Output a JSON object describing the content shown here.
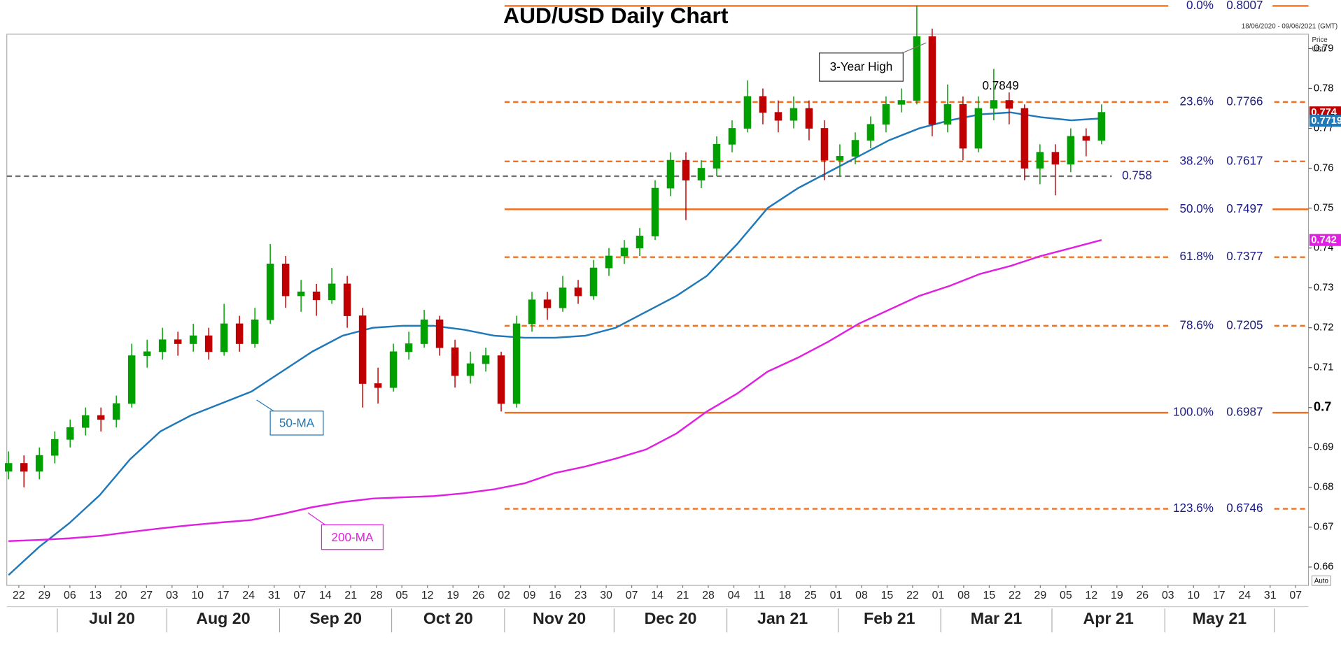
{
  "chart_data": {
    "type": "candlestick",
    "title": "AUD/USD Daily Chart",
    "date_range": "18/06/2020 - 09/06/2021 (GMT)",
    "y_label_lines": [
      "Price",
      "USD"
    ],
    "scale_mode": "Auto",
    "ylim": [
      0.6554,
      0.7936
    ],
    "yticks": [
      0.66,
      0.67,
      0.68,
      0.69,
      0.7,
      0.71,
      0.72,
      0.73,
      0.74,
      0.75,
      0.76,
      0.77,
      0.78,
      0.79
    ],
    "bold_ytick": 0.7,
    "grid": false,
    "week_labels": [
      "22",
      "29",
      "06",
      "13",
      "20",
      "27",
      "03",
      "10",
      "17",
      "24",
      "31",
      "07",
      "14",
      "21",
      "28",
      "05",
      "12",
      "19",
      "26",
      "02",
      "09",
      "16",
      "23",
      "30",
      "07",
      "14",
      "21",
      "28",
      "04",
      "11",
      "18",
      "25",
      "01",
      "08",
      "15",
      "22",
      "01",
      "08",
      "15",
      "22",
      "29",
      "05",
      "12",
      "19",
      "26",
      "03",
      "10",
      "17",
      "24",
      "31",
      "07"
    ],
    "month_labels": [
      "Jul 20",
      "Aug 20",
      "Sep 20",
      "Oct 20",
      "Nov 20",
      "Dec 20",
      "Jan 21",
      "Feb 21",
      "Mar 21",
      "Apr 21",
      "May 21"
    ],
    "up_color": "#00a000",
    "down_color": "#c00000",
    "ohlc": [
      [
        0.684,
        0.689,
        0.682,
        0.686
      ],
      [
        0.686,
        0.688,
        0.68,
        0.684
      ],
      [
        0.684,
        0.69,
        0.682,
        0.688
      ],
      [
        0.688,
        0.694,
        0.686,
        0.692
      ],
      [
        0.692,
        0.697,
        0.69,
        0.695
      ],
      [
        0.695,
        0.7,
        0.693,
        0.698
      ],
      [
        0.698,
        0.7,
        0.694,
        0.697
      ],
      [
        0.697,
        0.703,
        0.695,
        0.701
      ],
      [
        0.701,
        0.716,
        0.7,
        0.713
      ],
      [
        0.713,
        0.717,
        0.71,
        0.714
      ],
      [
        0.714,
        0.72,
        0.712,
        0.717
      ],
      [
        0.717,
        0.719,
        0.713,
        0.716
      ],
      [
        0.716,
        0.721,
        0.714,
        0.718
      ],
      [
        0.718,
        0.72,
        0.712,
        0.714
      ],
      [
        0.714,
        0.726,
        0.713,
        0.721
      ],
      [
        0.721,
        0.723,
        0.714,
        0.716
      ],
      [
        0.716,
        0.725,
        0.715,
        0.722
      ],
      [
        0.722,
        0.741,
        0.721,
        0.736
      ],
      [
        0.736,
        0.738,
        0.725,
        0.728
      ],
      [
        0.728,
        0.732,
        0.724,
        0.729
      ],
      [
        0.729,
        0.731,
        0.723,
        0.727
      ],
      [
        0.727,
        0.735,
        0.726,
        0.731
      ],
      [
        0.731,
        0.733,
        0.72,
        0.723
      ],
      [
        0.723,
        0.725,
        0.7,
        0.706
      ],
      [
        0.706,
        0.71,
        0.701,
        0.705
      ],
      [
        0.705,
        0.716,
        0.704,
        0.714
      ],
      [
        0.714,
        0.719,
        0.712,
        0.716
      ],
      [
        0.716,
        0.7245,
        0.715,
        0.722
      ],
      [
        0.722,
        0.723,
        0.713,
        0.715
      ],
      [
        0.715,
        0.717,
        0.705,
        0.708
      ],
      [
        0.708,
        0.714,
        0.706,
        0.711
      ],
      [
        0.711,
        0.715,
        0.709,
        0.713
      ],
      [
        0.713,
        0.714,
        0.699,
        0.701
      ],
      [
        0.701,
        0.723,
        0.7,
        0.721
      ],
      [
        0.721,
        0.729,
        0.719,
        0.727
      ],
      [
        0.727,
        0.729,
        0.722,
        0.725
      ],
      [
        0.725,
        0.733,
        0.724,
        0.73
      ],
      [
        0.73,
        0.732,
        0.726,
        0.728
      ],
      [
        0.728,
        0.737,
        0.727,
        0.735
      ],
      [
        0.735,
        0.74,
        0.733,
        0.738
      ],
      [
        0.738,
        0.742,
        0.736,
        0.74
      ],
      [
        0.74,
        0.745,
        0.738,
        0.743
      ],
      [
        0.743,
        0.757,
        0.742,
        0.755
      ],
      [
        0.755,
        0.764,
        0.753,
        0.762
      ],
      [
        0.762,
        0.764,
        0.747,
        0.757
      ],
      [
        0.757,
        0.762,
        0.755,
        0.76
      ],
      [
        0.76,
        0.768,
        0.758,
        0.766
      ],
      [
        0.766,
        0.772,
        0.764,
        0.77
      ],
      [
        0.77,
        0.782,
        0.769,
        0.778
      ],
      [
        0.778,
        0.78,
        0.771,
        0.774
      ],
      [
        0.774,
        0.777,
        0.769,
        0.772
      ],
      [
        0.772,
        0.778,
        0.77,
        0.775
      ],
      [
        0.775,
        0.777,
        0.767,
        0.77
      ],
      [
        0.77,
        0.772,
        0.757,
        0.762
      ],
      [
        0.762,
        0.766,
        0.758,
        0.763
      ],
      [
        0.763,
        0.769,
        0.761,
        0.767
      ],
      [
        0.767,
        0.773,
        0.765,
        0.771
      ],
      [
        0.771,
        0.778,
        0.769,
        0.776
      ],
      [
        0.776,
        0.78,
        0.774,
        0.777
      ],
      [
        0.777,
        0.8007,
        0.776,
        0.793
      ],
      [
        0.793,
        0.795,
        0.768,
        0.771
      ],
      [
        0.771,
        0.781,
        0.769,
        0.776
      ],
      [
        0.776,
        0.778,
        0.762,
        0.765
      ],
      [
        0.765,
        0.778,
        0.764,
        0.775
      ],
      [
        0.775,
        0.7849,
        0.772,
        0.777
      ],
      [
        0.777,
        0.779,
        0.771,
        0.775
      ],
      [
        0.775,
        0.776,
        0.757,
        0.76
      ],
      [
        0.76,
        0.766,
        0.756,
        0.764
      ],
      [
        0.764,
        0.766,
        0.7532,
        0.761
      ],
      [
        0.761,
        0.77,
        0.759,
        0.768
      ],
      [
        0.768,
        0.77,
        0.763,
        0.767
      ],
      [
        0.767,
        0.776,
        0.766,
        0.774
      ]
    ],
    "series": [
      {
        "name": "50-MA",
        "color": "#1f78b8",
        "values": [
          0.658,
          0.665,
          0.671,
          0.678,
          0.687,
          0.694,
          0.698,
          0.701,
          0.704,
          0.709,
          0.714,
          0.718,
          0.72,
          0.7205,
          0.7205,
          0.7195,
          0.718,
          0.7175,
          0.7175,
          0.718,
          0.72,
          0.724,
          0.728,
          0.733,
          0.741,
          0.75,
          0.755,
          0.759,
          0.763,
          0.767,
          0.77,
          0.772,
          0.7735,
          0.774,
          0.7728,
          0.772,
          0.7725
        ]
      },
      {
        "name": "200-MA",
        "color": "#e020e0",
        "values": [
          0.6665,
          0.6668,
          0.6672,
          0.6678,
          0.6688,
          0.6697,
          0.6705,
          0.6712,
          0.6718,
          0.6733,
          0.675,
          0.6763,
          0.6772,
          0.6775,
          0.6778,
          0.6785,
          0.6795,
          0.681,
          0.6836,
          0.6852,
          0.6872,
          0.6895,
          0.6935,
          0.699,
          0.7035,
          0.709,
          0.7125,
          0.7165,
          0.721,
          0.7245,
          0.728,
          0.7305,
          0.7335,
          0.7355,
          0.738,
          0.74,
          0.742
        ]
      }
    ],
    "fib_color": "#f07020",
    "fib_levels": [
      {
        "label": "0.0%",
        "value": 0.8007,
        "dashed": false
      },
      {
        "label": "23.6%",
        "value": 0.7766,
        "dashed": true
      },
      {
        "label": "38.2%",
        "value": 0.7617,
        "dashed": true
      },
      {
        "label": "50.0%",
        "value": 0.7497,
        "dashed": false
      },
      {
        "label": "61.8%",
        "value": 0.7377,
        "dashed": true
      },
      {
        "label": "78.6%",
        "value": 0.7205,
        "dashed": true
      },
      {
        "label": "100.0%",
        "value": 0.6987,
        "dashed": false
      },
      {
        "label": "123.6%",
        "value": 0.6746,
        "dashed": true
      }
    ],
    "reference_line": {
      "value": 0.758,
      "color": "#707070"
    },
    "annotations": {
      "peak": "3-Year High",
      "lower_high": 0.7849
    },
    "price_tags": [
      {
        "value": 0.774,
        "color": "#c00000"
      },
      {
        "value": 0.7719,
        "color": "#1f78b8"
      },
      {
        "value": 0.742,
        "color": "#e020e0"
      }
    ]
  }
}
